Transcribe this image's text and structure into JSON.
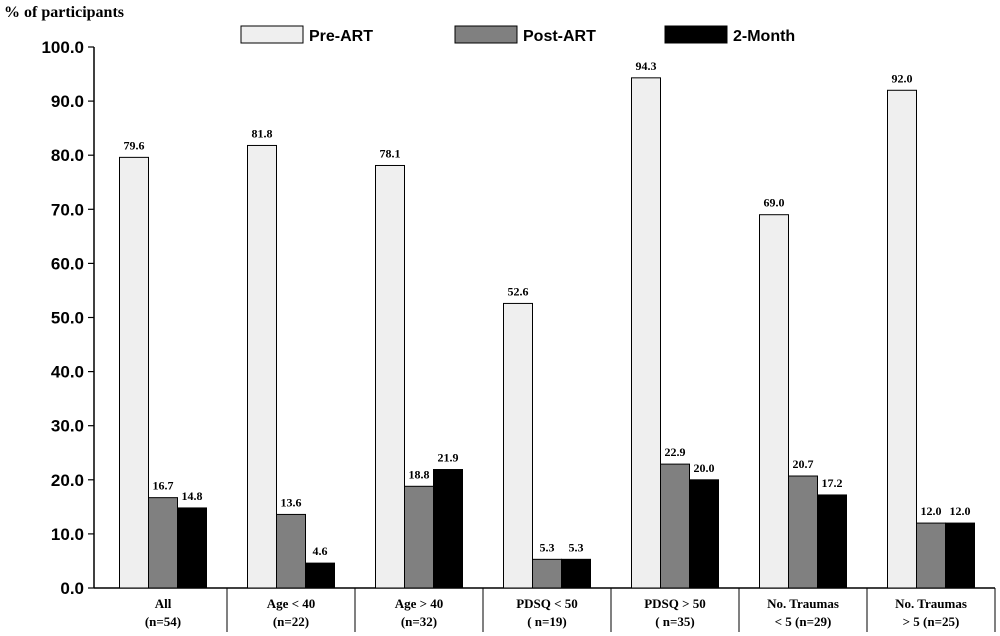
{
  "chart_data": {
    "type": "bar",
    "ylabel": "% of participants",
    "ylim": [
      0,
      100
    ],
    "yticks": [
      "0.0",
      "10.0",
      "20.0",
      "30.0",
      "40.0",
      "50.0",
      "60.0",
      "70.0",
      "80.0",
      "90.0",
      "100.0"
    ],
    "categories": [
      [
        "All",
        "(n=54)"
      ],
      [
        "Age < 40",
        "(n=22)"
      ],
      [
        "Age > 40",
        "(n=32)"
      ],
      [
        "PDSQ < 50",
        "( n=19)"
      ],
      [
        "PDSQ > 50",
        "( n=35)"
      ],
      [
        "No. Traumas",
        "< 5 (n=29)"
      ],
      [
        "No. Traumas",
        "> 5 (n=25)"
      ]
    ],
    "series": [
      {
        "name": "Pre-ART",
        "color": "#efefef",
        "values": [
          79.6,
          81.8,
          78.1,
          52.6,
          94.3,
          69.0,
          92.0
        ],
        "labels": [
          "79.6",
          "81.8",
          "78.1",
          "52.6",
          "94.3",
          "69.0",
          "92.0"
        ]
      },
      {
        "name": "Post-ART",
        "color": "#808080",
        "values": [
          16.7,
          13.6,
          18.8,
          5.3,
          22.9,
          20.7,
          12.0
        ],
        "labels": [
          "16.7",
          "13.6",
          "18.8",
          "5.3",
          "22.9",
          "20.7",
          "12.0"
        ]
      },
      {
        "name": "2-Month",
        "color": "#000000",
        "values": [
          14.8,
          4.6,
          21.9,
          5.3,
          20.0,
          17.2,
          12.0
        ],
        "labels": [
          "14.8",
          "4.6",
          "21.9",
          "5.3",
          "20.0",
          "17.2",
          "12.0"
        ]
      }
    ],
    "legend_position": "top"
  }
}
